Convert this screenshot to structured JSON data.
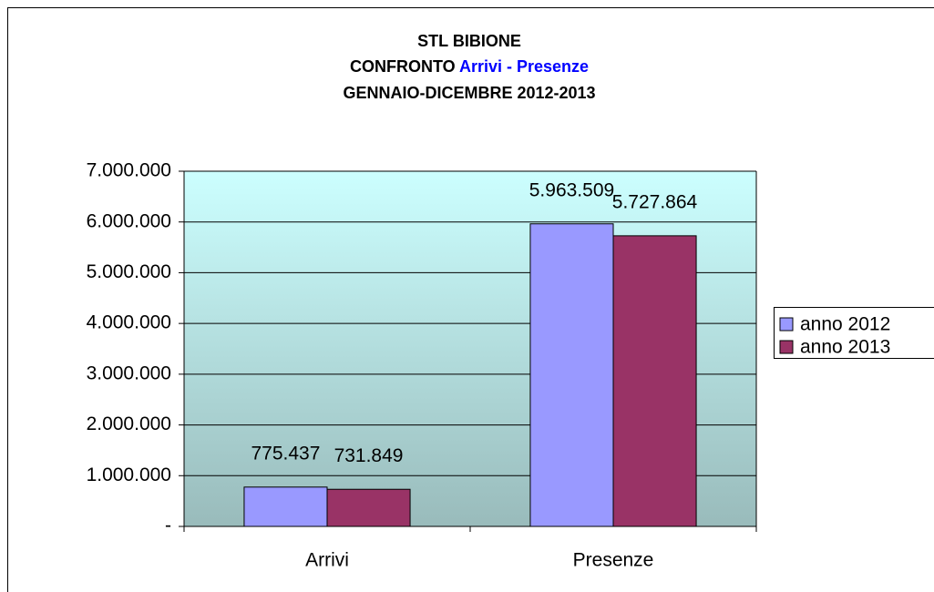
{
  "chart_data": {
    "type": "bar",
    "title": "STL BIBIONE",
    "subtitle": "CONFRONTO",
    "subtitle_highlight": "Arrivi - Presenze",
    "subtitle_highlight_color": "#0000ff",
    "period": "GENNAIO-DICEMBRE 2012-2013",
    "categories": [
      "Arrivi",
      "Presenze"
    ],
    "series": [
      {
        "name": "anno 2012",
        "color": "#9999ff",
        "values": [
          775437,
          5963509
        ],
        "value_labels": [
          "775.437",
          "5.963.509"
        ]
      },
      {
        "name": "anno 2013",
        "color": "#993366",
        "values": [
          731849,
          5727864
        ],
        "value_labels": [
          "731.849",
          "5.727.864"
        ]
      }
    ],
    "ylim": [
      0,
      7000000
    ],
    "yticks": [
      {
        "value": 0,
        "label": "-"
      },
      {
        "value": 1000000,
        "label": "1.000.000"
      },
      {
        "value": 2000000,
        "label": "2.000.000"
      },
      {
        "value": 3000000,
        "label": "3.000.000"
      },
      {
        "value": 4000000,
        "label": "4.000.000"
      },
      {
        "value": 5000000,
        "label": "5.000.000"
      },
      {
        "value": 6000000,
        "label": "6.000.000"
      },
      {
        "value": 7000000,
        "label": "7.000.000"
      }
    ],
    "grid": true,
    "legend": "right"
  }
}
